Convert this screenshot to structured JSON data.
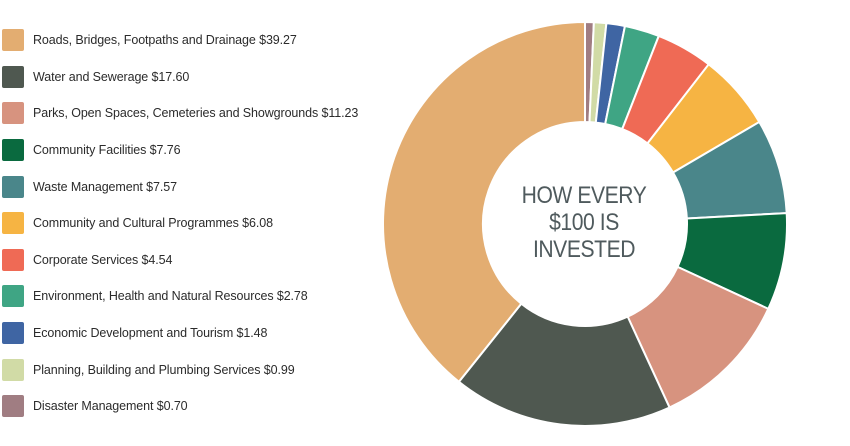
{
  "chart_data": {
    "type": "pie",
    "subtype": "donut",
    "center_title": [
      "HOW EVERY",
      "$100 IS",
      "INVESTED"
    ],
    "series": [
      {
        "label": "Roads, Bridges, Footpaths and Drainage $39.27",
        "value": 39.27,
        "color": "#e3ad71"
      },
      {
        "label": "Water and Sewerage $17.60",
        "value": 17.6,
        "color": "#4f5850"
      },
      {
        "label": "Parks, Open Spaces, Cemeteries and Showgrounds $11.23",
        "value": 11.23,
        "color": "#d7937f"
      },
      {
        "label": "Community Facilities $7.76",
        "value": 7.76,
        "color": "#0a6a3f"
      },
      {
        "label": "Waste Management $7.57",
        "value": 7.57,
        "color": "#4a868a"
      },
      {
        "label": "Community and Cultural Programmes $6.08",
        "value": 6.08,
        "color": "#f6b443"
      },
      {
        "label": "Corporate Services $4.54",
        "value": 4.54,
        "color": "#ef6a55"
      },
      {
        "label": "Environment, Health and Natural Resources $2.78",
        "value": 2.78,
        "color": "#3fa584"
      },
      {
        "label": "Economic Development and Tourism $1.48",
        "value": 1.48,
        "color": "#3f65a3"
      },
      {
        "label": "Planning, Building and Plumbing Services $0.99",
        "value": 0.99,
        "color": "#d1dba6"
      },
      {
        "label": "Disaster Management $0.70",
        "value": 0.7,
        "color": "#a07d82"
      }
    ],
    "legend_position": "left"
  }
}
